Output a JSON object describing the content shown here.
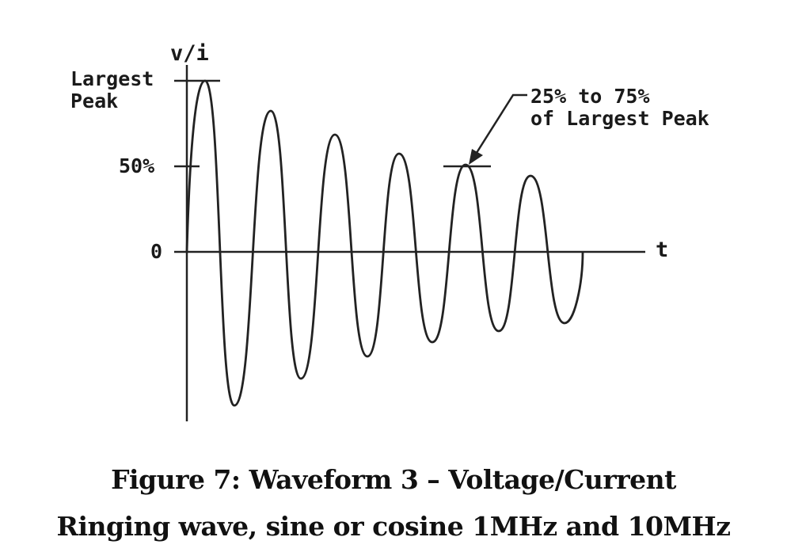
{
  "figure": {
    "y_axis_label": "v/i",
    "x_axis_label": "t",
    "ticks": {
      "largest_peak_line1": "Largest",
      "largest_peak_line2": "Peak",
      "fifty_percent": "50%",
      "zero": "0"
    },
    "annotation_line1": "25% to 75%",
    "annotation_line2": "of Largest Peak"
  },
  "caption": {
    "line1": "Figure 7: Waveform 3 – Voltage/Current",
    "line2": "Ringing wave, sine or cosine 1MHz and 10MHz"
  }
}
